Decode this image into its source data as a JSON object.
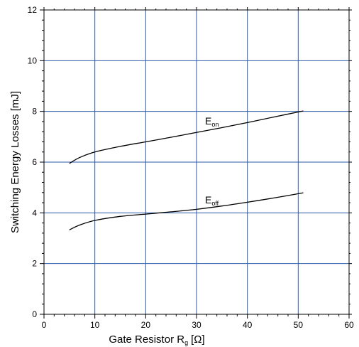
{
  "chart_data": {
    "type": "line",
    "title": "",
    "xlabel_main": "Gate Resistor R",
    "xlabel_sub": "g",
    "xlabel_unit": "[Ω]",
    "ylabel": "Switching Energy Losses [mJ]",
    "xlim": [
      0,
      60
    ],
    "ylim": [
      0,
      12
    ],
    "xticks": [
      "0",
      "10",
      "20",
      "30",
      "40",
      "50",
      "60"
    ],
    "yticks": [
      "0",
      "2",
      "4",
      "6",
      "8",
      "10",
      "12"
    ],
    "grid": true,
    "gridColor": "#2a5aa8",
    "series": [
      {
        "name_main": "E",
        "name_sub": "on",
        "x": [
          5,
          7,
          10,
          15,
          20,
          25,
          30,
          35,
          40,
          45,
          51
        ],
        "y": [
          5.95,
          6.18,
          6.4,
          6.62,
          6.8,
          6.98,
          7.17,
          7.36,
          7.56,
          7.77,
          8.02
        ]
      },
      {
        "name_main": "E",
        "name_sub": "off",
        "x": [
          5,
          7,
          10,
          15,
          20,
          25,
          30,
          35,
          40,
          45,
          51
        ],
        "y": [
          3.33,
          3.52,
          3.7,
          3.86,
          3.95,
          4.04,
          4.14,
          4.27,
          4.42,
          4.58,
          4.79
        ]
      }
    ]
  }
}
